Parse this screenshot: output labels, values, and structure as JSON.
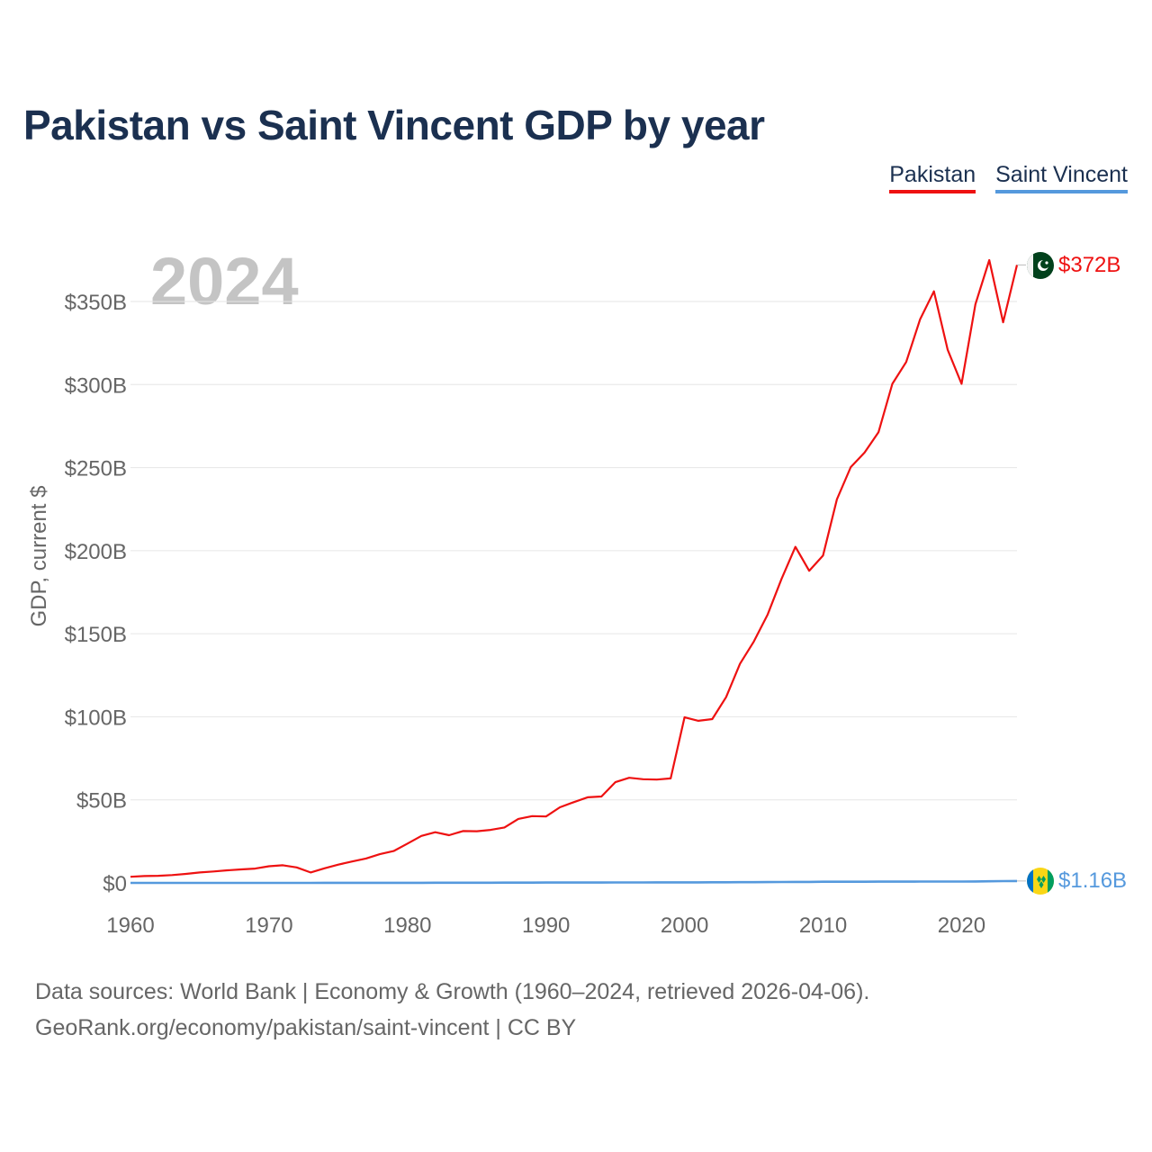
{
  "title": "Pakistan vs Saint Vincent GDP by year",
  "legend": [
    {
      "label": "Pakistan",
      "color": "#ee1111"
    },
    {
      "label": "Saint Vincent",
      "color": "#5599dd"
    }
  ],
  "year_watermark": "2024",
  "footer": {
    "line1": "Data sources: World Bank | Economy & Growth (1960–2024, retrieved 2026-04-06).",
    "line2": "GeoRank.org/economy/pakistan/saint-vincent | CC BY"
  },
  "chart_data": {
    "type": "line",
    "title": "Pakistan vs Saint Vincent GDP by year",
    "xlabel": "",
    "ylabel": "GDP, current $",
    "xlim": [
      1960,
      2024
    ],
    "ylim": [
      0,
      350
    ],
    "y_unit": "billions USD",
    "grid": true,
    "legend_position": "top-right",
    "x_ticks": [
      1960,
      1970,
      1980,
      1990,
      2000,
      2010,
      2020
    ],
    "x_tick_labels": [
      "1960",
      "1970",
      "1980",
      "1990",
      "2000",
      "2010",
      "2020"
    ],
    "y_ticks": [
      0,
      50,
      100,
      150,
      200,
      250,
      300,
      350
    ],
    "y_tick_labels": [
      "$0",
      "$50B",
      "$100B",
      "$150B",
      "$200B",
      "$250B",
      "$300B",
      "$350B"
    ],
    "x": [
      1960,
      1961,
      1962,
      1963,
      1964,
      1965,
      1966,
      1967,
      1968,
      1969,
      1970,
      1971,
      1972,
      1973,
      1974,
      1975,
      1976,
      1977,
      1978,
      1979,
      1980,
      1981,
      1982,
      1983,
      1984,
      1985,
      1986,
      1987,
      1988,
      1989,
      1990,
      1991,
      1992,
      1993,
      1994,
      1995,
      1996,
      1997,
      1998,
      1999,
      2000,
      2001,
      2002,
      2003,
      2004,
      2005,
      2006,
      2007,
      2008,
      2009,
      2010,
      2011,
      2012,
      2013,
      2014,
      2015,
      2016,
      2017,
      2018,
      2019,
      2020,
      2021,
      2022,
      2023,
      2024
    ],
    "series": [
      {
        "name": "Pakistan",
        "color": "#ee1111",
        "end_label": "$372B",
        "end_flag": "pakistan-flag",
        "values": [
          3.7,
          4.1,
          4.3,
          4.7,
          5.4,
          6.3,
          6.9,
          7.6,
          8.1,
          8.6,
          10.0,
          10.6,
          9.3,
          6.3,
          8.8,
          11.0,
          12.9,
          14.7,
          17.3,
          19.2,
          23.7,
          28.3,
          30.5,
          28.7,
          31.2,
          31.1,
          31.9,
          33.4,
          38.5,
          40.2,
          40.0,
          45.5,
          48.6,
          51.5,
          52.0,
          60.6,
          63.3,
          62.4,
          62.2,
          62.9,
          99.7,
          97.6,
          98.6,
          111.8,
          131.9,
          145.3,
          161.6,
          183.0,
          202.3,
          187.9,
          197.1,
          230.9,
          250.3,
          259.1,
          271.3,
          300.4,
          313.6,
          339.2,
          356.1,
          320.9,
          300.4,
          348.3,
          374.9,
          337.5,
          372.0
        ]
      },
      {
        "name": "Saint Vincent",
        "color": "#5599dd",
        "end_label": "$1.16B",
        "end_flag": "saint-vincent-flag",
        "values": [
          0.01,
          0.01,
          0.01,
          0.01,
          0.01,
          0.01,
          0.01,
          0.01,
          0.01,
          0.02,
          0.02,
          0.02,
          0.02,
          0.02,
          0.03,
          0.03,
          0.03,
          0.04,
          0.05,
          0.05,
          0.06,
          0.08,
          0.09,
          0.1,
          0.11,
          0.12,
          0.13,
          0.15,
          0.17,
          0.18,
          0.2,
          0.21,
          0.23,
          0.23,
          0.24,
          0.26,
          0.27,
          0.29,
          0.31,
          0.33,
          0.34,
          0.35,
          0.37,
          0.39,
          0.42,
          0.45,
          0.5,
          0.55,
          0.58,
          0.58,
          0.68,
          0.68,
          0.7,
          0.73,
          0.75,
          0.76,
          0.77,
          0.79,
          0.81,
          0.83,
          0.81,
          0.87,
          0.95,
          1.06,
          1.16
        ]
      }
    ]
  }
}
